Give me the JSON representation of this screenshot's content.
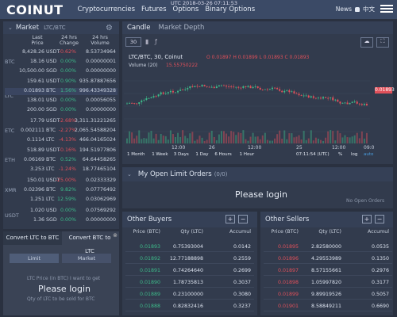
{
  "header": {
    "logo": "COINUT",
    "nav": [
      "Cryptocurrencies",
      "Futures",
      "Options",
      "Binary Options"
    ],
    "clock": "UTC 2018-03-26 07:11:53",
    "news": "News",
    "lang": "中文"
  },
  "market": {
    "title": "Market",
    "pair": "LTC/BTC",
    "cols": [
      "Last Price",
      "24 hrs Change",
      "24 hrs Volume"
    ],
    "groups": [
      {
        "label": "BTC",
        "rows": [
          {
            "p": "8,428.26",
            "c": "USDT",
            "ch": "-0.62%",
            "v": "8.53734964",
            "cls": "neg"
          },
          {
            "p": "18.16",
            "c": "USD",
            "ch": "0.00%",
            "v": "0.00000001",
            "cls": "pos"
          },
          {
            "p": "10,500.00",
            "c": "SGD",
            "ch": "0.00%",
            "v": "0.00000000",
            "cls": "pos"
          }
        ]
      },
      {
        "label": "LTC",
        "rows": [
          {
            "p": "159.61",
            "c": "USDT",
            "ch": "0.90%",
            "v": "935.87887656",
            "cls": "pos"
          },
          {
            "p": "0.01893",
            "c": "BTC",
            "ch": "1.56%",
            "v": "996.43349328",
            "cls": "pos",
            "hl": true
          },
          {
            "p": "138.01",
            "c": "USD",
            "ch": "0.00%",
            "v": "0.00056055",
            "cls": "pos"
          },
          {
            "p": "200.00",
            "c": "SGD",
            "ch": "0.00%",
            "v": "0.00000000",
            "cls": "pos"
          }
        ]
      },
      {
        "label": "ETC",
        "rows": [
          {
            "p": "17.79",
            "c": "USDT",
            "ch": "-2.68%",
            "v": "3,311.31221265",
            "cls": "neg"
          },
          {
            "p": "0.002111",
            "c": "BTC",
            "ch": "-2.27%",
            "v": "2,065.54588204",
            "cls": "neg"
          },
          {
            "p": "0.1114",
            "c": "LTC",
            "ch": "-4.13%",
            "v": "466.04165024",
            "cls": "neg"
          }
        ]
      },
      {
        "label": "ETH",
        "rows": [
          {
            "p": "518.89",
            "c": "USDT",
            "ch": "-0.16%",
            "v": "194.51977806",
            "cls": "neg"
          },
          {
            "p": "0.06169",
            "c": "BTC",
            "ch": "0.52%",
            "v": "64.64458265",
            "cls": "pos"
          },
          {
            "p": "3.253",
            "c": "LTC",
            "ch": "-1.24%",
            "v": "18.77465104",
            "cls": "neg"
          }
        ]
      },
      {
        "label": "XMR",
        "rows": [
          {
            "p": "150.01",
            "c": "USDT",
            "ch": "-25.00%",
            "v": "0.02333329",
            "cls": "neg"
          },
          {
            "p": "0.02396",
            "c": "BTC",
            "ch": "9.82%",
            "v": "0.07776492",
            "cls": "pos"
          },
          {
            "p": "1.251",
            "c": "LTC",
            "ch": "12.59%",
            "v": "0.03062969",
            "cls": "pos"
          }
        ]
      },
      {
        "label": "USDT",
        "rows": [
          {
            "p": "1.020",
            "c": "USD",
            "ch": "0.00%",
            "v": "0.07569292",
            "cls": "pos"
          },
          {
            "p": "1.36",
            "c": "SGD",
            "ch": "0.00%",
            "v": "0.00000000",
            "cls": "pos"
          }
        ]
      }
    ]
  },
  "convert": {
    "tab1": "Convert LTC to BTC",
    "tab2": "Convert BTC to LTC",
    "limit": "Limit",
    "market": "Market",
    "hint": "LTC Price (in BTC) I want to get",
    "qty": "Qty of LTC to be sold for BTC",
    "login": "Please login"
  },
  "chart": {
    "tabs": [
      "Candle",
      "Market Depth"
    ],
    "interval": "30",
    "symbol": "LTC/BTC, 30, Coinut",
    "ohlc": "O 0.01897 H 0.01899 L 0.01893 C 0.01893",
    "volume": "Volume (20)",
    "vol_val": "15.55750222",
    "price_tag": "0.01893",
    "xticks": [
      "12:00",
      "26",
      "12:00",
      "25",
      "12:00",
      "09:0"
    ],
    "ranges": [
      "1 Month",
      "1 Week",
      "3 Days",
      "1 Day",
      "6 Hours",
      "1 Hour"
    ],
    "utc": "07:11:54 (UTC)",
    "opts": [
      "%",
      "log",
      "auto"
    ]
  },
  "limit_orders": {
    "title": "My Open Limit Orders",
    "count": "(0/0)",
    "login": "Please login",
    "empty": "No Open Orders"
  },
  "buyers": {
    "title": "Other Buyers",
    "cols": [
      "Price (BTC)",
      "Qty (LTC)",
      "Accumul"
    ],
    "rows": [
      [
        "0.01893",
        "0.75393004",
        "0.0142"
      ],
      [
        "0.01892",
        "12.77188898",
        "0.2559"
      ],
      [
        "0.01891",
        "0.74264640",
        "0.2699"
      ],
      [
        "0.01890",
        "1.78735813",
        "0.3037"
      ],
      [
        "0.01889",
        "0.23100000",
        "0.3080"
      ],
      [
        "0.01888",
        "0.82832416",
        "0.3237"
      ]
    ]
  },
  "sellers": {
    "title": "Other Sellers",
    "cols": [
      "Price (BTC)",
      "Qty (LTC)",
      "Accumul"
    ],
    "rows": [
      [
        "0.01895",
        "2.82580000",
        "0.0535"
      ],
      [
        "0.01896",
        "4.29553989",
        "0.1350"
      ],
      [
        "0.01897",
        "8.57155661",
        "0.2976"
      ],
      [
        "0.01898",
        "1.05997820",
        "0.3177"
      ],
      [
        "0.01899",
        "9.89919526",
        "0.5057"
      ],
      [
        "0.01901",
        "8.58849211",
        "0.6690"
      ]
    ]
  },
  "colors": {
    "up": "#3dbb8a",
    "down": "#e0505a",
    "header": "#3b4a66",
    "panel": "#323b4d"
  }
}
